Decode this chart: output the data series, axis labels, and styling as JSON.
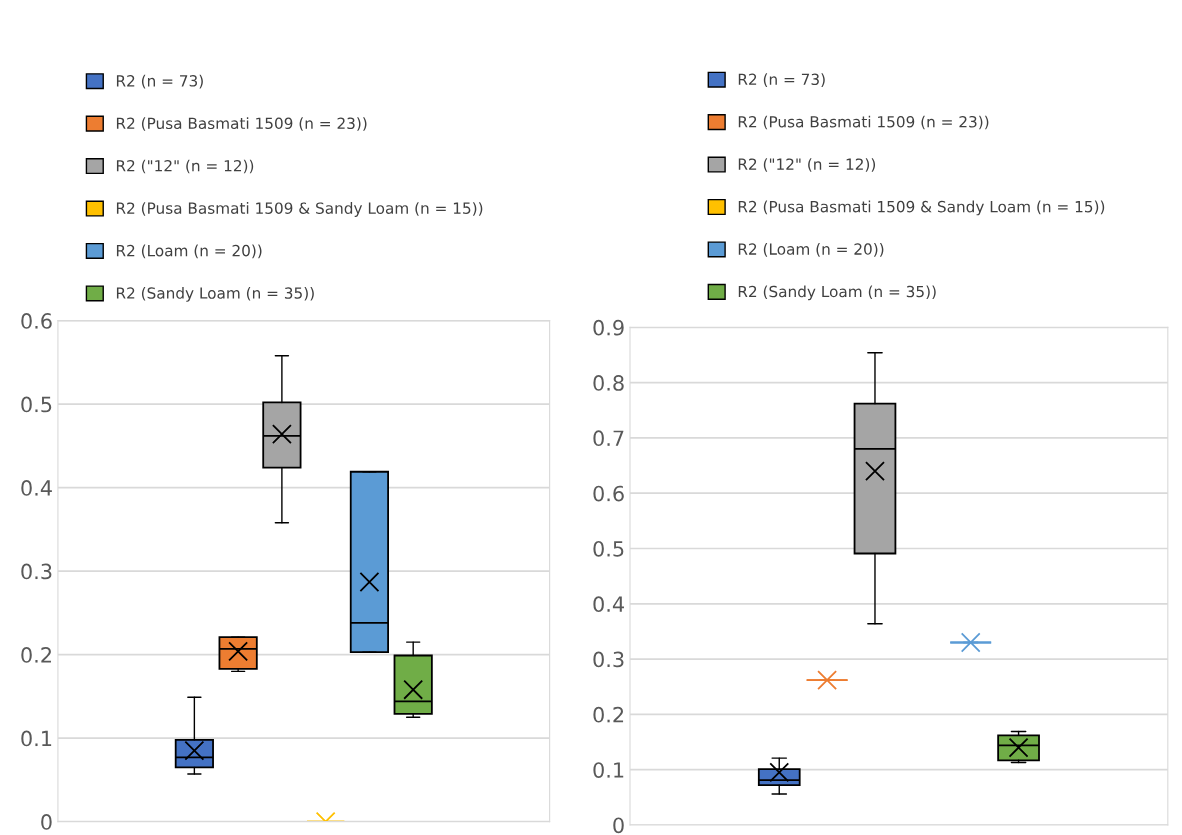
{
  "chart_data": [
    {
      "type": "box",
      "categories": [
        null
      ],
      "ylim": [
        0,
        0.6
      ],
      "yticks": [
        0,
        0.1,
        0.2,
        0.3,
        0.4,
        0.5,
        0.6
      ],
      "grid": "y",
      "legend": "top left",
      "tick_labels": "y",
      "series": [
        {
          "name": "R2 (n = 73)",
          "color": "#4472c4",
          "boxes": [
            {
              "low": 0.057,
              "q1": 0.065,
              "median": 0.077,
              "q3": 0.098,
              "high": 0.149,
              "mean": 0.085
            }
          ]
        },
        {
          "name": "R2 (Pusa Basmati 1509 (n = 23))",
          "color": "#ed7d31",
          "boxes": [
            {
              "low": 0.18,
              "q1": 0.183,
              "median": 0.207,
              "q3": 0.221,
              "high": 0.221,
              "mean": 0.204
            }
          ]
        },
        {
          "name": "R2 (\"12\" (n = 12))",
          "color": "#a5a5a5",
          "boxes": [
            {
              "low": 0.358,
              "q1": 0.424,
              "median": 0.462,
              "q3": 0.502,
              "high": 0.558,
              "mean": 0.464
            }
          ]
        },
        {
          "name": "R2 (Pusa Basmati 1509 & Sandy Loam (n = 15))",
          "color": "#ffc000",
          "boxes": [
            {
              "low": 0,
              "q1": 0,
              "median": 0,
              "q3": 0,
              "high": 0,
              "mean": 0
            }
          ]
        },
        {
          "name": "R2 (Loam (n = 20))",
          "color": "#5b9bd5",
          "boxes": [
            {
              "low": 0.203,
              "q1": 0.203,
              "median": 0.238,
              "q3": 0.419,
              "high": 0.419,
              "mean": 0.287
            }
          ]
        },
        {
          "name": "R2 (Sandy Loam (n = 35))",
          "color": "#70ad47",
          "boxes": [
            {
              "low": 0.125,
              "q1": 0.129,
              "median": 0.144,
              "q3": 0.199,
              "high": 0.215,
              "mean": 0.158
            }
          ]
        }
      ]
    },
    {
      "type": "box",
      "categories": [
        null
      ],
      "ylim": [
        0,
        0.9
      ],
      "yticks": [
        0,
        0.1,
        0.2,
        0.3,
        0.4,
        0.5,
        0.6,
        0.7,
        0.8,
        0.9
      ],
      "grid": "y",
      "legend": "top left",
      "tick_labels": "y",
      "series": [
        {
          "name": "R2 (n = 73)",
          "color": "#4472c4",
          "boxes": [
            {
              "low": 0.056,
              "q1": 0.072,
              "median": 0.081,
              "q3": 0.101,
              "high": 0.121,
              "mean": 0.095
            }
          ]
        },
        {
          "name": "R2 (Pusa Basmati 1509 (n = 23))",
          "color": "#ed7d31",
          "boxes": [
            {
              "low": 0.262,
              "q1": 0.262,
              "median": 0.262,
              "q3": 0.262,
              "high": 0.262,
              "mean": 0.262
            }
          ]
        },
        {
          "name": "R2 (\"12\" (n = 12))",
          "color": "#a5a5a5",
          "boxes": [
            {
              "low": 0.364,
              "q1": 0.491,
              "median": 0.68,
              "q3": 0.762,
              "high": 0.854,
              "mean": 0.64
            }
          ]
        },
        {
          "name": "R2 (Pusa Basmati 1509 & Sandy Loam (n = 15))",
          "color": "#ffc000",
          "boxes": [
            null
          ]
        },
        {
          "name": "R2 (Loam (n = 20))",
          "color": "#5b9bd5",
          "boxes": [
            {
              "low": 0.33,
              "q1": 0.33,
              "median": 0.33,
              "q3": 0.33,
              "high": 0.33,
              "mean": 0.33
            }
          ]
        },
        {
          "name": "R2 (Sandy Loam (n = 35))",
          "color": "#70ad47",
          "boxes": [
            {
              "low": 0.113,
              "q1": 0.117,
              "median": 0.144,
              "q3": 0.162,
              "high": 0.169,
              "mean": 0.14
            }
          ]
        }
      ]
    }
  ]
}
